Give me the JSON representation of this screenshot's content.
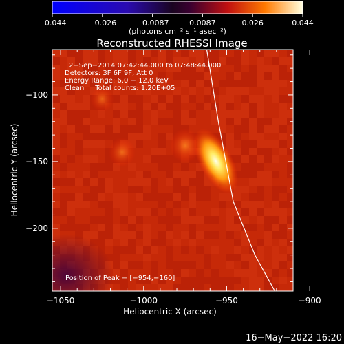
{
  "colorbar": {
    "ticks": [
      "−0.044",
      "−0.026",
      "−0.0087",
      "0.0087",
      "0.026",
      "0.044"
    ],
    "unit_label": "(photons cm⁻² s⁻¹ asec⁻²)",
    "range": [
      -0.044,
      0.044
    ]
  },
  "chart_data": {
    "type": "heatmap",
    "title": "Reconstructed RHESSI Image",
    "xlabel": "Heliocentric X (arcsec)",
    "ylabel": "Heliocentric Y (arcsec)",
    "xlim": [
      -1055,
      -910
    ],
    "ylim": [
      -247,
      -66
    ],
    "xticks": [
      -1050,
      -1000,
      -950,
      -900
    ],
    "xtick_labels": [
      "−1050",
      "−1000",
      "−950",
      "−900"
    ],
    "yticks": [
      -100,
      -150,
      -200
    ],
    "ytick_labels": [
      "−100",
      "−150",
      "−200"
    ],
    "annotations": [
      "2−Sep−2014 07:42:44.000 to 07:48:44.000",
      "Detectors: 3F 6F 9F, Att 0",
      "Energy Range: 6.0 − 12.0 keV",
      "Clean     Total counts: 1.20E+05"
    ],
    "peak_label": "Position of Peak = [−954,−160]",
    "peak": [
      -954,
      -160
    ],
    "secondary_sources": [
      {
        "x": -975,
        "y": -138,
        "level": 0.55
      },
      {
        "x": -1013,
        "y": -143,
        "level": 0.35
      },
      {
        "x": -1025,
        "y": -103,
        "level": 0.2
      }
    ],
    "limb_arc": [
      [
        -962,
        -66
      ],
      [
        -955,
        -120
      ],
      [
        -946,
        -180
      ],
      [
        -933,
        -220
      ],
      [
        -921,
        -247
      ]
    ],
    "grid": false
  },
  "timestamp": "16−May−2022 16:20"
}
